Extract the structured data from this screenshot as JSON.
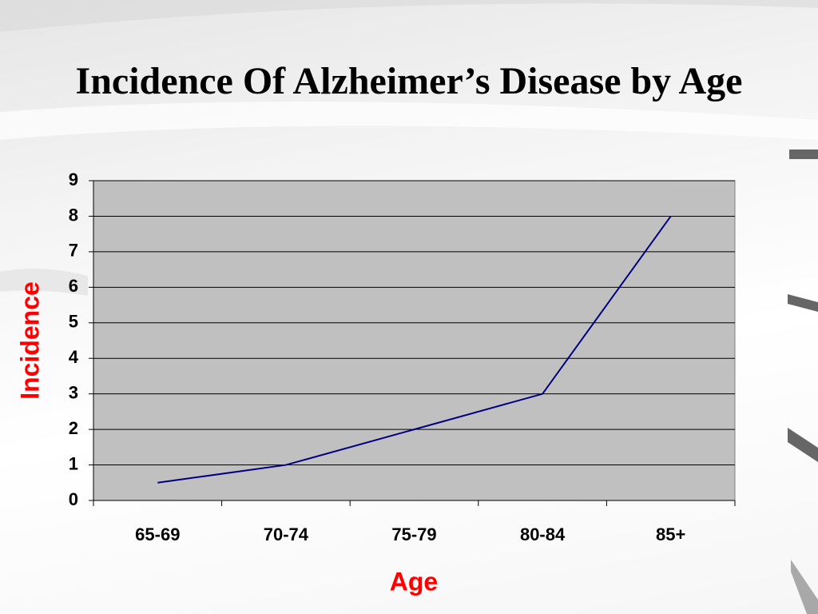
{
  "chart_data": {
    "type": "line",
    "title": "Incidence Of Alzheimer’s Disease by Age",
    "x_label": "Age",
    "y_label": "Incidence",
    "categories": [
      "65-69",
      "70-74",
      "75-79",
      "80-84",
      "85+"
    ],
    "values": [
      0.5,
      1,
      2,
      3,
      8
    ],
    "color": "#000080",
    "ylim": [
      0,
      9
    ],
    "yticks": [
      0,
      1,
      2,
      3,
      4,
      5,
      6,
      7,
      8,
      9
    ],
    "grid": true
  }
}
